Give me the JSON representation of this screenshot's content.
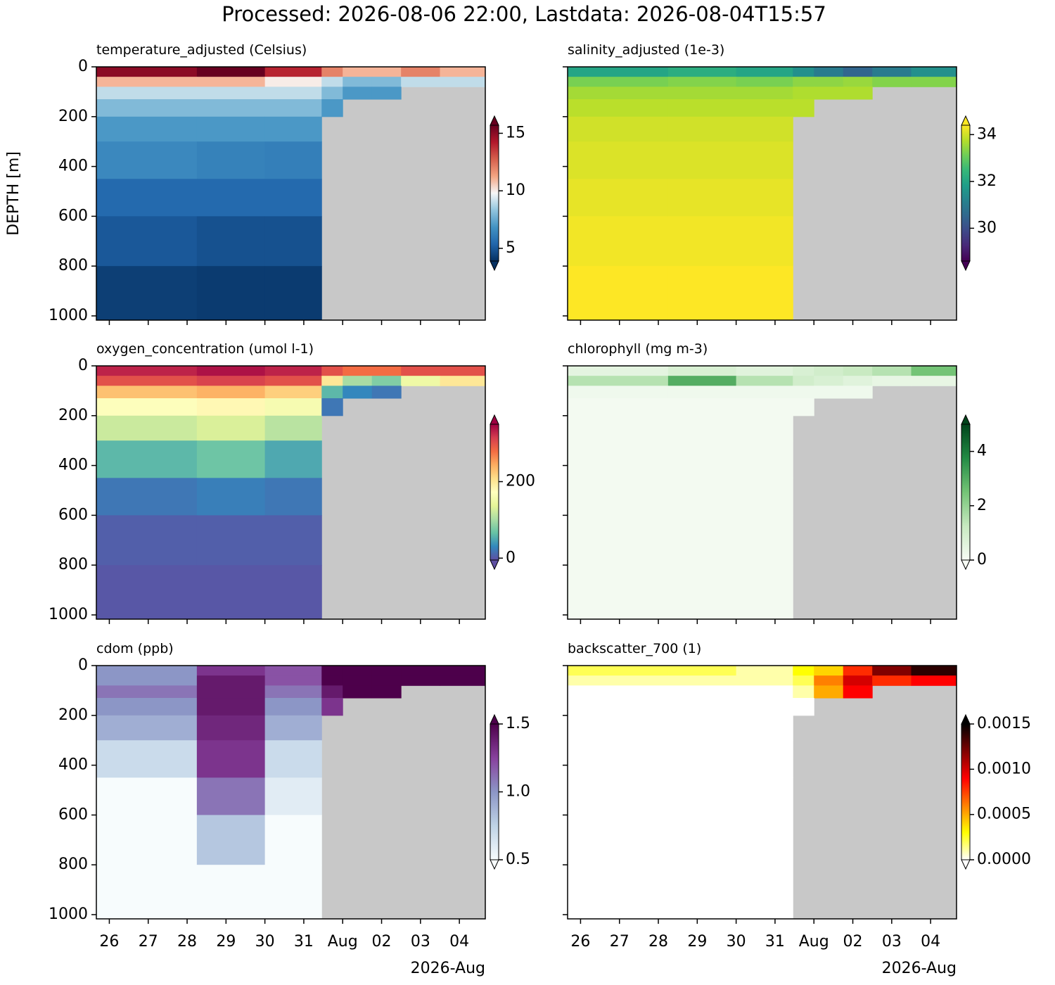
{
  "chart_data": {
    "type": "heatmap",
    "title": "Processed: 2026-08-06 22:00, Lastdata: 2026-08-04T15:57",
    "ylabel": "DEPTH [m]",
    "x_offset_label": "2026-Aug",
    "xlim": [
      "2026-07-25T16:00",
      "2026-08-04T16:00"
    ],
    "xticks": [
      {
        "value": "2026-07-26T00:00",
        "label": "26"
      },
      {
        "value": "2026-07-27T00:00",
        "label": "27"
      },
      {
        "value": "2026-07-28T00:00",
        "label": "28"
      },
      {
        "value": "2026-07-29T00:00",
        "label": "29"
      },
      {
        "value": "2026-07-30T00:00",
        "label": "30"
      },
      {
        "value": "2026-07-31T00:00",
        "label": "31"
      },
      {
        "value": "2026-08-01T00:00",
        "label": "Aug"
      },
      {
        "value": "2026-08-02T00:00",
        "label": "02"
      },
      {
        "value": "2026-08-03T00:00",
        "label": "03"
      },
      {
        "value": "2026-08-04T00:00",
        "label": "04"
      }
    ],
    "ylim": [
      0,
      1017
    ],
    "y_inverted": true,
    "yticks": [
      0,
      200,
      400,
      600,
      800,
      1000
    ],
    "nodata_color": "#c8c8c8",
    "x_edges": [
      "2026-07-25T16:00",
      "2026-07-28T06:00",
      "2026-07-30T00:00",
      "2026-07-31T11:00",
      "2026-08-01T00:00",
      "2026-08-01T18:00",
      "2026-08-02T12:00",
      "2026-08-03T12:00",
      "2026-08-04T16:00"
    ],
    "depth_edges": [
      0,
      40,
      80,
      130,
      200,
      300,
      450,
      600,
      800,
      1017
    ],
    "panels": [
      {
        "title": "temperature_adjusted (Celsius)",
        "clim": [
          3.9,
          15.7
        ],
        "cticks": [
          5,
          10,
          15
        ],
        "cmap": [
          "#053061",
          "#2166ac",
          "#4393c3",
          "#92c5de",
          "#f7f7f7",
          "#f4a582",
          "#d6604d",
          "#b2182b",
          "#67001f"
        ],
        "values": [
          [
            15,
            16,
            14,
            12,
            11,
            11,
            12,
            11
          ],
          [
            11,
            11,
            10,
            9,
            8,
            8,
            9,
            9
          ],
          [
            9,
            9,
            9,
            8,
            7,
            7,
            null,
            null
          ],
          [
            8,
            8,
            8,
            7,
            null,
            null,
            null,
            null
          ],
          [
            7,
            7,
            7,
            null,
            null,
            null,
            null,
            null
          ],
          [
            6.5,
            6.3,
            6.2,
            null,
            null,
            null,
            null,
            null
          ],
          [
            5.5,
            5.5,
            5.5,
            null,
            null,
            null,
            null,
            null
          ],
          [
            5,
            4.8,
            4.8,
            null,
            null,
            null,
            null,
            null
          ],
          [
            4.3,
            4.2,
            4.2,
            null,
            null,
            null,
            null,
            null
          ]
        ]
      },
      {
        "title": "salinity_adjusted (1e-3)",
        "clim": [
          28.6,
          34.4
        ],
        "cticks": [
          30,
          32,
          34
        ],
        "cmap": [
          "#440154",
          "#482878",
          "#3e4989",
          "#31688e",
          "#26828e",
          "#1f9e89",
          "#35b779",
          "#6ece58",
          "#b5de2b",
          "#fde725"
        ],
        "values": [
          [
            32,
            32.2,
            32,
            31.5,
            31,
            30.5,
            31,
            31.5
          ],
          [
            33.2,
            33.3,
            33.2,
            33.4,
            33.4,
            33.5,
            33.3,
            33.3
          ],
          [
            33.6,
            33.6,
            33.6,
            33.7,
            33.7,
            33.7,
            null,
            null
          ],
          [
            33.8,
            33.8,
            33.8,
            33.8,
            null,
            null,
            null,
            null
          ],
          [
            34.0,
            34.0,
            34.0,
            null,
            null,
            null,
            null,
            null
          ],
          [
            34.1,
            34.1,
            34.1,
            null,
            null,
            null,
            null,
            null
          ],
          [
            34.2,
            34.2,
            34.2,
            null,
            null,
            null,
            null,
            null
          ],
          [
            34.3,
            34.3,
            34.3,
            null,
            null,
            null,
            null,
            null
          ],
          [
            34.4,
            34.4,
            34.4,
            null,
            null,
            null,
            null,
            null
          ]
        ]
      },
      {
        "title": "oxygen_concentration (umol l-1)",
        "clim": [
          -5,
          350
        ],
        "cticks": [
          0,
          200
        ],
        "cmap": [
          "#5e4fa2",
          "#3288bd",
          "#66c2a5",
          "#abdda4",
          "#e6f598",
          "#ffffbf",
          "#fee08b",
          "#fdae61",
          "#f46d43",
          "#d53e4f",
          "#9e0142"
        ],
        "values": [
          [
            330,
            340,
            330,
            300,
            280,
            280,
            300,
            300
          ],
          [
            300,
            310,
            300,
            200,
            100,
            80,
            150,
            200
          ],
          [
            230,
            240,
            220,
            60,
            30,
            20,
            null,
            null
          ],
          [
            170,
            180,
            160,
            20,
            null,
            null,
            null,
            null
          ],
          [
            120,
            130,
            110,
            null,
            null,
            null,
            null,
            null
          ],
          [
            60,
            70,
            50,
            null,
            null,
            null,
            null,
            null
          ],
          [
            20,
            25,
            20,
            null,
            null,
            null,
            null,
            null
          ],
          [
            5,
            5,
            5,
            null,
            null,
            null,
            null,
            null
          ],
          [
            0,
            0,
            0,
            null,
            null,
            null,
            null,
            null
          ]
        ]
      },
      {
        "title": "chlorophyll (mg m-3)",
        "clim": [
          0,
          5
        ],
        "cticks": [
          0,
          2,
          4
        ],
        "cmap": [
          "#f7fcf5",
          "#c7e9c0",
          "#74c476",
          "#238b45",
          "#00441b"
        ],
        "values": [
          [
            0.5,
            0.8,
            0.6,
            0.8,
            1,
            1.2,
            1.5,
            2.5
          ],
          [
            1.5,
            3,
            1.5,
            1,
            0.8,
            0.6,
            0.4,
            0.4
          ],
          [
            0.2,
            0.2,
            0.2,
            0.2,
            0.2,
            0.2,
            null,
            null
          ],
          [
            0.1,
            0.1,
            0.1,
            0.1,
            null,
            null,
            null,
            null
          ],
          [
            0.1,
            0.1,
            0.1,
            null,
            null,
            null,
            null,
            null
          ],
          [
            0.1,
            0.1,
            0.1,
            null,
            null,
            null,
            null,
            null
          ],
          [
            0.1,
            0.1,
            0.1,
            null,
            null,
            null,
            null,
            null
          ],
          [
            0.1,
            0.1,
            0.1,
            null,
            null,
            null,
            null,
            null
          ],
          [
            0.1,
            0.1,
            0.1,
            null,
            null,
            null,
            null,
            null
          ]
        ]
      },
      {
        "title": "cdom (ppb)",
        "clim": [
          0.5,
          1.5
        ],
        "cticks": [
          0.5,
          {
            "value": 1.0,
            "label": "1.0"
          },
          1.5
        ],
        "cmap": [
          "#f7fcfd",
          "#bfd3e6",
          "#8c96c6",
          "#88419d",
          "#4d004b"
        ],
        "values": [
          [
            1.0,
            1.3,
            1.2,
            1.5,
            1.5,
            1.5,
            1.5,
            1.5
          ],
          [
            1.0,
            1.4,
            1.2,
            1.5,
            1.5,
            1.5,
            1.5,
            1.5
          ],
          [
            1.1,
            1.4,
            1.1,
            1.4,
            1.5,
            1.5,
            null,
            null
          ],
          [
            1.0,
            1.4,
            1.0,
            1.3,
            null,
            null,
            null,
            null
          ],
          [
            0.9,
            1.35,
            0.9,
            null,
            null,
            null,
            null,
            null
          ],
          [
            0.7,
            1.3,
            0.7,
            null,
            null,
            null,
            null,
            null
          ],
          [
            0.5,
            1.1,
            0.6,
            null,
            null,
            null,
            null,
            null
          ],
          [
            0.5,
            0.8,
            0.5,
            null,
            null,
            null,
            null,
            null
          ],
          [
            0.5,
            0.5,
            0.5,
            null,
            null,
            null,
            null,
            null
          ]
        ]
      },
      {
        "title": "backscatter_700 (1)",
        "clim": [
          0,
          0.0015
        ],
        "cticks": [
          {
            "value": 0,
            "label": "0.0000"
          },
          0.0005,
          {
            "value": 0.001,
            "label": "0.0010"
          },
          0.0015
        ],
        "cmap": [
          "#ffffff",
          "#ffff00",
          "#ff8000",
          "#ff0000",
          "#800000",
          "#000000"
        ],
        "values": [
          [
            0.0002,
            0.0002,
            0.0001,
            0.0003,
            0.0004,
            0.0008,
            0.0012,
            0.0014
          ],
          [
            0.0001,
            0.0001,
            0.0001,
            0.0002,
            0.0006,
            0.001,
            0.0008,
            0.0009
          ],
          [
            0,
            0,
            0,
            0.0001,
            0.0005,
            0.0009,
            null,
            null
          ],
          [
            0,
            0,
            0,
            0,
            null,
            null,
            null,
            null
          ],
          [
            0,
            0,
            0,
            null,
            null,
            null,
            null,
            null
          ],
          [
            0,
            0,
            0,
            null,
            null,
            null,
            null,
            null
          ],
          [
            0,
            0,
            0,
            null,
            null,
            null,
            null,
            null
          ],
          [
            0,
            0,
            0,
            null,
            null,
            null,
            null,
            null
          ],
          [
            0,
            0,
            0,
            null,
            null,
            null,
            null,
            null
          ]
        ]
      }
    ]
  }
}
